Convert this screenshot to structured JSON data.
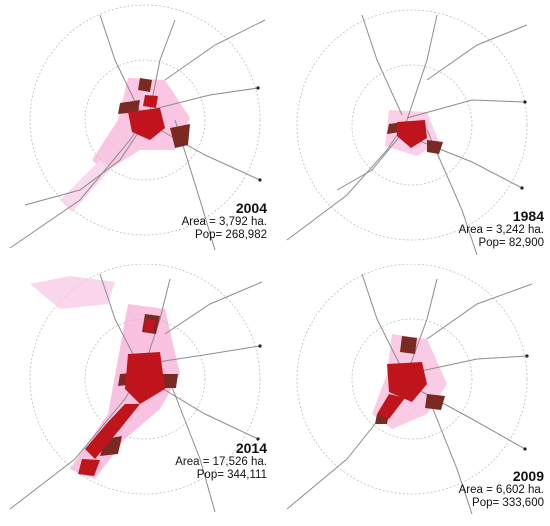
{
  "panels": [
    {
      "year": "2004",
      "area_label": "Area = ",
      "area_value": "3,792 ha.",
      "pop_label": "Pop= ",
      "pop_value": "268,982",
      "red_color": "#c0141c",
      "brown_color": "#7a2a22",
      "halo_color": "#f7a8d4"
    },
    {
      "year": "1984",
      "area_label": "Area = ",
      "area_value": "3,242 ha.",
      "pop_label": "Pop= ",
      "pop_value": "82,900",
      "red_color": "#c0141c",
      "brown_color": "#7a2a22",
      "halo_color": "#f7a8d4"
    },
    {
      "year": "2014",
      "area_label": "Area = ",
      "area_value": "17,526 ha.",
      "pop_label": "Pop= ",
      "pop_value": "344,111",
      "red_color": "#c0141c",
      "brown_color": "#7a2a22",
      "halo_color": "#f7a8d4"
    },
    {
      "year": "2009",
      "area_label": "Area = ",
      "area_value": "6,602 ha.",
      "pop_label": "Pop= ",
      "pop_value": "333,600",
      "red_color": "#c0141c",
      "brown_color": "#7a2a22",
      "halo_color": "#f7a8d4"
    }
  ]
}
